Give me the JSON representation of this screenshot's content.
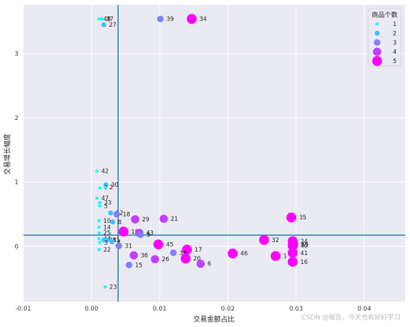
{
  "chart_data": {
    "type": "scatter",
    "xlabel": "交易金额占比",
    "ylabel": "交易增长幅度",
    "xlim": [
      -0.01,
      0.046
    ],
    "ylim": [
      -0.86,
      3.76
    ],
    "xticks": [
      -0.01,
      0.0,
      0.01,
      0.02,
      0.03,
      0.04
    ],
    "xtick_labels": [
      "-0.01",
      "0.00",
      "0.01",
      "0.02",
      "0.03",
      "0.04"
    ],
    "yticks": [
      0,
      1,
      2,
      3
    ],
    "ytick_labels": [
      "0",
      "1",
      "2",
      "3"
    ],
    "grid": true,
    "background": "#eaeaf2",
    "reference_lines": {
      "vline_x": 0.0039,
      "hline_y": 0.175,
      "color": "#1f77b4"
    },
    "legend": {
      "title": "商品个数",
      "position": "top-right",
      "entries": [
        {
          "label": "1",
          "value": 1
        },
        {
          "label": "2",
          "value": 2
        },
        {
          "label": "3",
          "value": 3
        },
        {
          "label": "4",
          "value": 4
        },
        {
          "label": "5",
          "value": 5
        }
      ]
    },
    "colors": {
      "1": "#00ffff",
      "2": "#40bfff",
      "3": "#8080ff",
      "4": "#bf40ff",
      "5": "#ff00ff"
    },
    "points": [
      {
        "label": "48",
        "x": 0.0011,
        "y": 3.54,
        "n": 1
      },
      {
        "label": "37",
        "x": 0.0015,
        "y": 3.54,
        "n": 1
      },
      {
        "label": "27",
        "x": 0.0018,
        "y": 3.45,
        "n": 2
      },
      {
        "label": "39",
        "x": 0.0101,
        "y": 3.54,
        "n": 3
      },
      {
        "label": "34",
        "x": 0.0147,
        "y": 3.54,
        "n": 5
      },
      {
        "label": "42",
        "x": 0.0008,
        "y": 1.17,
        "n": 1
      },
      {
        "label": "30",
        "x": 0.0021,
        "y": 0.96,
        "n": 2
      },
      {
        "label": "7",
        "x": 0.0012,
        "y": 0.91,
        "n": 1
      },
      {
        "label": "2",
        "x": 0.002,
        "y": 0.92,
        "n": 1
      },
      {
        "label": "47",
        "x": 0.0008,
        "y": 0.75,
        "n": 1
      },
      {
        "label": "33",
        "x": 0.0012,
        "y": 0.68,
        "n": 1
      },
      {
        "label": "5",
        "x": 0.0012,
        "y": 0.63,
        "n": 1
      },
      {
        "label": "12",
        "x": 0.0028,
        "y": 0.52,
        "n": 2
      },
      {
        "label": "18",
        "x": 0.0037,
        "y": 0.5,
        "n": 3
      },
      {
        "label": "10",
        "x": 0.0011,
        "y": 0.4,
        "n": 1
      },
      {
        "label": "8",
        "x": 0.0031,
        "y": 0.38,
        "n": 2
      },
      {
        "label": "29",
        "x": 0.0064,
        "y": 0.42,
        "n": 4
      },
      {
        "label": "21",
        "x": 0.0106,
        "y": 0.43,
        "n": 4
      },
      {
        "label": "14",
        "x": 0.0011,
        "y": 0.3,
        "n": 1
      },
      {
        "label": "19",
        "x": 0.0047,
        "y": 0.23,
        "n": 5
      },
      {
        "label": "43",
        "x": 0.007,
        "y": 0.21,
        "n": 4
      },
      {
        "label": "9",
        "x": 0.0072,
        "y": 0.18,
        "n": 3
      },
      {
        "label": "25",
        "x": 0.0011,
        "y": 0.21,
        "n": 1
      },
      {
        "label": "44",
        "x": 0.0011,
        "y": 0.12,
        "n": 1
      },
      {
        "label": "28",
        "x": 0.0018,
        "y": 0.1,
        "n": 2
      },
      {
        "label": "11",
        "x": 0.0023,
        "y": 0.1,
        "n": 2
      },
      {
        "label": "3",
        "x": 0.0012,
        "y": 0.06,
        "n": 1
      },
      {
        "label": "4",
        "x": 0.003,
        "y": 0.07,
        "n": 2
      },
      {
        "label": "31",
        "x": 0.004,
        "y": 0.01,
        "n": 3
      },
      {
        "label": "22",
        "x": 0.0011,
        "y": -0.05,
        "n": 1
      },
      {
        "label": "45",
        "x": 0.0098,
        "y": 0.03,
        "n": 5
      },
      {
        "label": "17",
        "x": 0.014,
        "y": -0.05,
        "n": 5
      },
      {
        "label": "38",
        "x": 0.012,
        "y": -0.1,
        "n": 3
      },
      {
        "label": "36",
        "x": 0.0062,
        "y": -0.14,
        "n": 4
      },
      {
        "label": "26",
        "x": 0.0093,
        "y": -0.2,
        "n": 4
      },
      {
        "label": "20",
        "x": 0.0138,
        "y": -0.19,
        "n": 5
      },
      {
        "label": "6",
        "x": 0.016,
        "y": -0.27,
        "n": 4
      },
      {
        "label": "15",
        "x": 0.0055,
        "y": -0.29,
        "n": 3
      },
      {
        "label": "46",
        "x": 0.0207,
        "y": -0.11,
        "n": 5
      },
      {
        "label": "32",
        "x": 0.0253,
        "y": 0.1,
        "n": 5
      },
      {
        "label": "1",
        "x": 0.027,
        "y": -0.15,
        "n": 5
      },
      {
        "label": "35",
        "x": 0.0293,
        "y": 0.45,
        "n": 5
      },
      {
        "label": "24",
        "x": 0.0295,
        "y": 0.08,
        "n": 5
      },
      {
        "label": "40",
        "x": 0.0295,
        "y": 0.01,
        "n": 5
      },
      {
        "label": "49",
        "x": 0.0296,
        "y": 0.03,
        "n": 5
      },
      {
        "label": "41",
        "x": 0.0295,
        "y": -0.1,
        "n": 5
      },
      {
        "label": "16",
        "x": 0.0295,
        "y": -0.24,
        "n": 5
      },
      {
        "label": "23",
        "x": 0.002,
        "y": -0.63,
        "n": 1
      }
    ]
  },
  "watermark": "CSDN @报告，今天也有好好学习"
}
